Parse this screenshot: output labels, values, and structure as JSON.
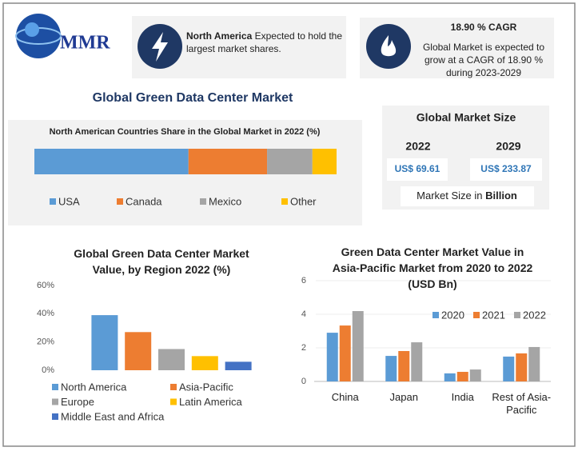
{
  "logo": "MMR",
  "info_boxes": [
    {
      "bold": "North America",
      "text": "Expected to hold the largest market shares."
    },
    {
      "title": "18.90 % CAGR",
      "text": "Global Market is expected to grow at a CAGR of 18.90 % during 2023-2029"
    }
  ],
  "title": "Global Green Data Center Market",
  "market_size": {
    "title": "Global Market Size",
    "years": [
      "2022",
      "2029"
    ],
    "values": [
      "US$ 69.61",
      "US$ 233.87"
    ],
    "note": "Market Size in",
    "note_bold": "Billion"
  },
  "chart_data": [
    {
      "type": "bar",
      "title": "North American Countries Share in the Global Market in 2022 (%)",
      "orientation": "horizontal",
      "stacked": true,
      "xlim": [
        0,
        100
      ],
      "series": [
        {
          "name": "USA",
          "color": "#5b9bd5",
          "values": [
            51
          ]
        },
        {
          "name": "Canada",
          "color": "#ed7d31",
          "values": [
            26
          ]
        },
        {
          "name": "Mexico",
          "color": "#a5a5a5",
          "values": [
            15
          ]
        },
        {
          "name": "Other",
          "color": "#ffc000",
          "values": [
            8
          ]
        }
      ]
    },
    {
      "type": "bar",
      "title": "Global Green Data Center Market Value, by Region 2022 (%)",
      "categories": [
        "North America",
        "Asia-Pacific",
        "Europe",
        "Latin America",
        "Middle East and Africa"
      ],
      "values": [
        39,
        27,
        15,
        10,
        6
      ],
      "colors": [
        "#5b9bd5",
        "#ed7d31",
        "#a5a5a5",
        "#ffc000",
        "#4472c4"
      ],
      "ylim": [
        0,
        60
      ],
      "yticks": [
        {
          "value": 0,
          "label": "0%"
        },
        {
          "value": 20,
          "label": "20%"
        },
        {
          "value": 40,
          "label": "40%"
        },
        {
          "value": 60,
          "label": "60%"
        }
      ],
      "grid": false
    },
    {
      "type": "bar",
      "title": "Green Data Center Market Value in Asia-Pacific Market from 2020 to 2022 (USD Bn)",
      "categories": [
        "China",
        "Japan",
        "India",
        "Rest of Asia-Pacific"
      ],
      "series": [
        {
          "name": "2020",
          "color": "#5b9bd5",
          "values": [
            2.9,
            1.52,
            0.48,
            1.48
          ]
        },
        {
          "name": "2021",
          "color": "#ed7d31",
          "values": [
            3.33,
            1.81,
            0.57,
            1.67
          ]
        },
        {
          "name": "2022",
          "color": "#a5a5a5",
          "values": [
            4.19,
            2.33,
            0.71,
            2.05
          ]
        }
      ],
      "ylim": [
        0,
        6
      ],
      "yticks": [
        0,
        2,
        4,
        6
      ],
      "grid": true
    }
  ]
}
